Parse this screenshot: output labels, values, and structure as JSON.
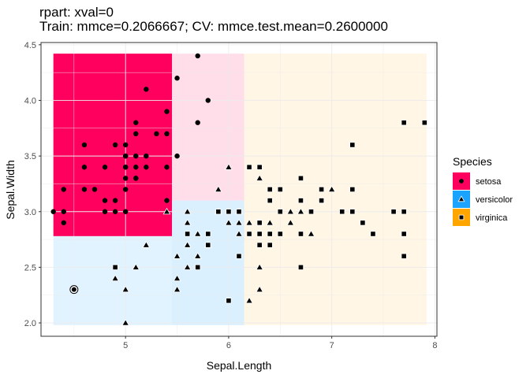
{
  "chart_data": {
    "type": "scatter",
    "title": "rpart: xval=0",
    "subtitle": "Train: mmce=0.2066667; CV: mmce.test.mean=0.2600000",
    "xlabel": "Sepal.Length",
    "ylabel": "Sepal.Width",
    "xlim": [
      4.18,
      8.02
    ],
    "ylim": [
      1.88,
      4.52
    ],
    "x_ticks": [
      5,
      6,
      7,
      8
    ],
    "y_ticks": [
      2.0,
      2.5,
      3.0,
      3.5,
      4.0,
      4.5
    ],
    "x_tick_labels": [
      "5",
      "6",
      "7",
      "8"
    ],
    "y_tick_labels": [
      "2.0",
      "2.5",
      "3.0",
      "3.5",
      "4.0",
      "4.5"
    ],
    "grid": true,
    "legend": {
      "title": "Species",
      "position": "right",
      "entries": [
        {
          "label": "setosa",
          "color": "#ff005f",
          "shape": "circle"
        },
        {
          "label": "versicolor",
          "color": "#1aa3ff",
          "shape": "triangle"
        },
        {
          "label": "virginica",
          "color": "#ffa500",
          "shape": "square"
        }
      ]
    },
    "regions": [
      {
        "class": "setosa",
        "x0": 4.3,
        "x1": 5.45,
        "y0": 2.78,
        "y1": 4.42,
        "color": "#ff005f",
        "opacity": 1.0
      },
      {
        "class": "setosa",
        "x0": 5.45,
        "x1": 6.15,
        "y0": 3.1,
        "y1": 4.42,
        "color": "#ff005f",
        "opacity": 0.13
      },
      {
        "class": "versicolor",
        "x0": 4.3,
        "x1": 5.45,
        "y0": 1.98,
        "y1": 2.78,
        "color": "#1aa3ff",
        "opacity": 0.13
      },
      {
        "class": "versicolor",
        "x0": 5.45,
        "x1": 6.15,
        "y0": 1.98,
        "y1": 3.1,
        "color": "#1aa3ff",
        "opacity": 0.16
      },
      {
        "class": "virginica",
        "x0": 6.15,
        "x1": 7.92,
        "y0": 1.98,
        "y1": 4.42,
        "color": "#ffa500",
        "opacity": 0.1
      }
    ],
    "series": [
      {
        "name": "setosa",
        "shape": "circle",
        "points": [
          [
            5.7,
            4.4
          ],
          [
            5.5,
            4.2
          ],
          [
            5.2,
            4.1
          ],
          [
            5.8,
            4.0
          ],
          [
            5.4,
            3.9
          ],
          [
            5.7,
            3.8
          ],
          [
            5.1,
            3.8
          ],
          [
            4.6,
            3.6
          ],
          [
            5.0,
            3.6
          ],
          [
            5.1,
            3.7
          ],
          [
            5.4,
            3.7
          ],
          [
            5.3,
            3.7
          ],
          [
            4.9,
            3.6
          ],
          [
            5.1,
            3.5
          ],
          [
            5.0,
            3.5
          ],
          [
            5.2,
            3.5
          ],
          [
            5.5,
            3.5
          ],
          [
            4.8,
            3.4
          ],
          [
            5.0,
            3.4
          ],
          [
            5.1,
            3.4
          ],
          [
            5.2,
            3.4
          ],
          [
            5.4,
            3.4
          ],
          [
            5.1,
            3.3
          ],
          [
            5.0,
            3.3
          ],
          [
            4.6,
            3.4
          ],
          [
            4.4,
            3.2
          ],
          [
            4.7,
            3.2
          ],
          [
            4.6,
            3.2
          ],
          [
            4.8,
            3.1
          ],
          [
            4.9,
            3.1
          ],
          [
            5.0,
            3.2
          ],
          [
            5.4,
            3.1
          ],
          [
            4.3,
            3.0
          ],
          [
            4.4,
            3.0
          ],
          [
            4.8,
            3.0
          ],
          [
            4.9,
            3.0
          ],
          [
            5.0,
            3.0
          ],
          [
            4.4,
            2.9
          ],
          [
            5.0,
            3.5
          ],
          [
            5.0,
            3.4
          ],
          [
            5.1,
            3.3
          ]
        ]
      },
      {
        "name": "versicolor",
        "shape": "triangle",
        "points": [
          [
            6.0,
            3.4
          ],
          [
            5.9,
            3.2
          ],
          [
            6.3,
            3.3
          ],
          [
            6.4,
            3.2
          ],
          [
            6.9,
            3.1
          ],
          [
            7.0,
            3.2
          ],
          [
            6.7,
            3.1
          ],
          [
            6.5,
            2.8
          ],
          [
            6.7,
            3.0
          ],
          [
            6.6,
            3.0
          ],
          [
            6.1,
            3.0
          ],
          [
            6.2,
            2.9
          ],
          [
            6.3,
            2.9
          ],
          [
            6.4,
            2.9
          ],
          [
            6.1,
            2.8
          ],
          [
            6.6,
            2.9
          ],
          [
            6.8,
            2.8
          ],
          [
            6.0,
            2.9
          ],
          [
            5.9,
            3.0
          ],
          [
            5.7,
            2.8
          ],
          [
            5.6,
            3.0
          ],
          [
            5.4,
            3.0
          ],
          [
            5.6,
            2.9
          ],
          [
            5.8,
            2.7
          ],
          [
            5.5,
            2.6
          ],
          [
            5.7,
            2.6
          ],
          [
            5.6,
            2.7
          ],
          [
            5.6,
            2.5
          ],
          [
            5.5,
            2.4
          ],
          [
            5.2,
            2.7
          ],
          [
            5.0,
            2.3
          ],
          [
            5.1,
            2.5
          ],
          [
            4.9,
            2.4
          ],
          [
            5.5,
            2.3
          ],
          [
            6.3,
            2.5
          ],
          [
            6.3,
            2.3
          ],
          [
            6.2,
            2.2
          ],
          [
            5.0,
            2.0
          ],
          [
            5.8,
            2.7
          ],
          [
            6.1,
            2.9
          ]
        ]
      },
      {
        "name": "virginica",
        "shape": "square",
        "points": [
          [
            7.7,
            3.8
          ],
          [
            7.9,
            3.8
          ],
          [
            7.2,
            3.6
          ],
          [
            6.2,
            3.4
          ],
          [
            6.3,
            3.4
          ],
          [
            6.4,
            3.2
          ],
          [
            6.7,
            3.3
          ],
          [
            6.9,
            3.2
          ],
          [
            7.2,
            3.2
          ],
          [
            7.1,
            3.0
          ],
          [
            7.2,
            3.0
          ],
          [
            7.6,
            3.0
          ],
          [
            7.7,
            3.0
          ],
          [
            6.8,
            3.0
          ],
          [
            6.5,
            3.0
          ],
          [
            6.7,
            3.1
          ],
          [
            6.9,
            3.1
          ],
          [
            6.4,
            3.1
          ],
          [
            6.3,
            2.9
          ],
          [
            6.5,
            3.2
          ],
          [
            6.1,
            3.0
          ],
          [
            6.0,
            3.0
          ],
          [
            5.9,
            3.0
          ],
          [
            5.8,
            2.8
          ],
          [
            6.3,
            2.8
          ],
          [
            6.2,
            2.8
          ],
          [
            6.4,
            2.8
          ],
          [
            6.5,
            2.8
          ],
          [
            6.7,
            2.8
          ],
          [
            7.3,
            2.9
          ],
          [
            7.4,
            2.8
          ],
          [
            7.7,
            2.8
          ],
          [
            7.7,
            2.6
          ],
          [
            6.3,
            2.7
          ],
          [
            6.1,
            2.6
          ],
          [
            5.8,
            2.7
          ],
          [
            5.7,
            2.5
          ],
          [
            4.9,
            2.5
          ],
          [
            6.0,
            2.2
          ],
          [
            6.7,
            2.5
          ],
          [
            5.6,
            2.8
          ],
          [
            6.4,
            2.7
          ]
        ]
      }
    ],
    "misclassified_outline_points": [
      [
        4.5,
        2.3
      ]
    ]
  }
}
